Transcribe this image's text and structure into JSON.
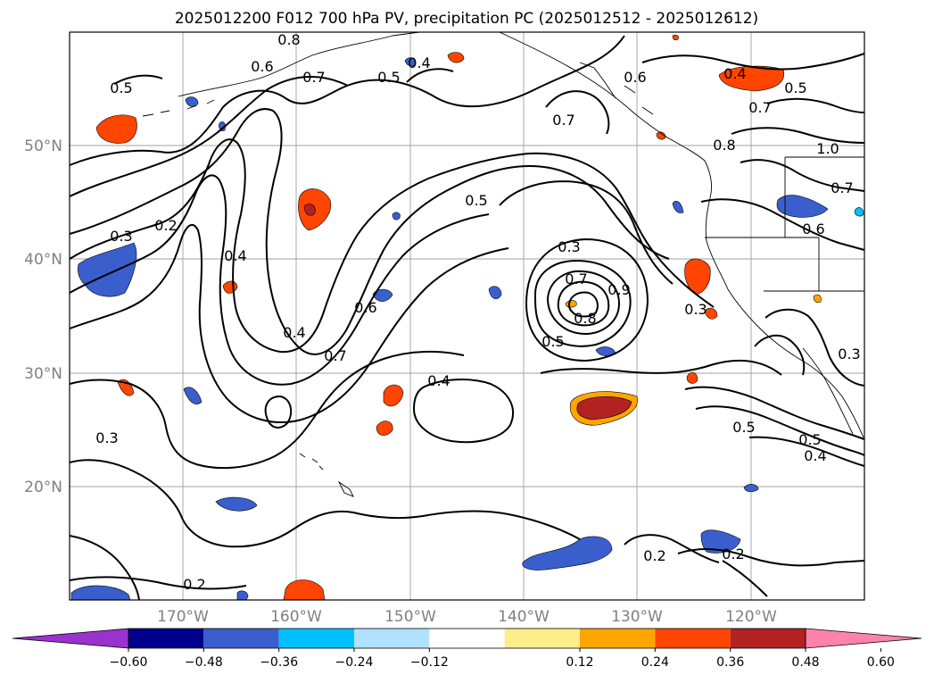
{
  "title": "2025012200 F012 700 hPa PV, precipitation PC (2025012512 - 2025012612)",
  "map": {
    "lat_labels": [
      "50°N",
      "40°N",
      "30°N",
      "20°N"
    ],
    "lon_labels": [
      "170°W",
      "160°W",
      "150°W",
      "140°W",
      "130°W",
      "120°W"
    ],
    "colors": {
      "coastline": "#000000",
      "contour": "#000000",
      "gridline": "#a0a0a0"
    }
  },
  "contour_labels": [
    {
      "text": "0.8"
    },
    {
      "text": "0.6"
    },
    {
      "text": "0.7"
    },
    {
      "text": "0.5"
    },
    {
      "text": "0.4"
    },
    {
      "text": "0.5"
    },
    {
      "text": "0.6"
    },
    {
      "text": "0.7"
    },
    {
      "text": "0.4"
    },
    {
      "text": "0.5"
    },
    {
      "text": "0.7"
    },
    {
      "text": "0.8"
    },
    {
      "text": "1.0"
    },
    {
      "text": "0.7"
    },
    {
      "text": "0.3"
    },
    {
      "text": "0.2"
    },
    {
      "text": "0.4"
    },
    {
      "text": "0.5"
    },
    {
      "text": "0.3"
    },
    {
      "text": "0.6"
    },
    {
      "text": "0.6"
    },
    {
      "text": "0.4"
    },
    {
      "text": "0.7"
    },
    {
      "text": "0.7"
    },
    {
      "text": "0.9"
    },
    {
      "text": "0.8"
    },
    {
      "text": "0.5"
    },
    {
      "text": "0.3"
    },
    {
      "text": "0.3"
    },
    {
      "text": "0.4"
    },
    {
      "text": "0.3"
    },
    {
      "text": "0.5"
    },
    {
      "text": "0.5"
    },
    {
      "text": "0.4"
    },
    {
      "text": "0.2"
    },
    {
      "text": "0.2"
    },
    {
      "text": "0.2"
    }
  ],
  "colorbar": {
    "ticks": [
      "−0.60",
      "−0.48",
      "−0.36",
      "−0.24",
      "−0.12",
      "0.12",
      "0.24",
      "0.36",
      "0.48",
      "0.60"
    ],
    "colors": [
      "#9a32cd",
      "#00008b",
      "#3a5fcd",
      "#00bfff",
      "#b0e2ff",
      "#ffffff",
      "#ffec8b",
      "#ffa500",
      "#ff4500",
      "#b22222",
      "#ff82ab"
    ]
  }
}
